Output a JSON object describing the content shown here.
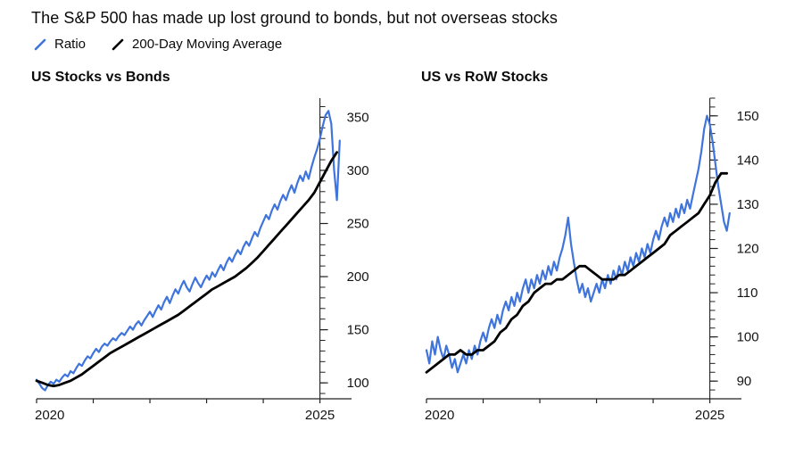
{
  "page": {
    "title": "The S&P 500 has made up lost ground to bonds, but not overseas stocks"
  },
  "legend": [
    {
      "label": "Ratio",
      "color": "#3e74dc",
      "icon": "diagonal-line"
    },
    {
      "label": "200-Day Moving Average",
      "color": "#000000",
      "icon": "diagonal-line"
    }
  ],
  "colors": {
    "accent_blue": "#3e74dc",
    "line_black": "#000000",
    "axis": "#222222"
  },
  "chart_data": [
    {
      "type": "line",
      "title": "US Stocks vs Bonds",
      "xlabel": "",
      "ylabel": "",
      "x_range": [
        2020,
        2025.4
      ],
      "x_ticks": [
        2020,
        2021,
        2022,
        2023,
        2024,
        2025
      ],
      "x_tick_labels": [
        "2020",
        "",
        "",
        "",
        "",
        "2025"
      ],
      "axis_x": 2025,
      "ylim": [
        85,
        368
      ],
      "y_ticks": [
        100,
        150,
        200,
        250,
        300,
        350
      ],
      "y_minor_step": 10,
      "legend_position": "top-left",
      "grid": false,
      "series": [
        {
          "name": "Ratio",
          "color": "#3e74dc",
          "width": 2.2,
          "x_start": 2020,
          "x_step": 0.05,
          "y": [
            103,
            99,
            95,
            93,
            98,
            101,
            99,
            103,
            101,
            105,
            108,
            106,
            111,
            109,
            114,
            118,
            116,
            121,
            125,
            123,
            128,
            132,
            129,
            134,
            137,
            135,
            139,
            142,
            140,
            144,
            147,
            145,
            149,
            153,
            150,
            155,
            158,
            154,
            159,
            163,
            167,
            162,
            168,
            173,
            169,
            176,
            181,
            175,
            182,
            188,
            184,
            191,
            196,
            190,
            186,
            193,
            199,
            194,
            190,
            196,
            201,
            197,
            204,
            200,
            206,
            211,
            206,
            213,
            218,
            214,
            220,
            225,
            221,
            228,
            233,
            229,
            236,
            242,
            238,
            246,
            252,
            258,
            254,
            262,
            268,
            263,
            271,
            277,
            272,
            280,
            286,
            279,
            288,
            295,
            290,
            299,
            292,
            303,
            312,
            320,
            330,
            342,
            352,
            356,
            344,
            300,
            272,
            328
          ]
        },
        {
          "name": "200-Day Moving Average",
          "color": "#000000",
          "width": 2.8,
          "x_start": 2020,
          "x_step": 0.1,
          "y": [
            102,
            100,
            98,
            97,
            98,
            100,
            102,
            105,
            108,
            112,
            116,
            120,
            124,
            128,
            131,
            134,
            137,
            140,
            143,
            146,
            149,
            152,
            155,
            158,
            161,
            164,
            168,
            172,
            176,
            180,
            184,
            188,
            191,
            194,
            197,
            200,
            204,
            208,
            213,
            218,
            224,
            230,
            236,
            242,
            248,
            254,
            260,
            266,
            272,
            279,
            289,
            299,
            309,
            317
          ]
        }
      ]
    },
    {
      "type": "line",
      "title": "US vs RoW Stocks",
      "xlabel": "",
      "ylabel": "",
      "x_range": [
        2020,
        2025.4
      ],
      "x_ticks": [
        2020,
        2021,
        2022,
        2023,
        2024,
        2025
      ],
      "x_tick_labels": [
        "2020",
        "",
        "",
        "",
        "",
        "2025"
      ],
      "axis_x": 2025,
      "ylim": [
        86,
        154
      ],
      "y_ticks": [
        90,
        100,
        110,
        120,
        130,
        140,
        150
      ],
      "y_minor_step": 2,
      "legend_position": "top-left",
      "grid": false,
      "series": [
        {
          "name": "Ratio",
          "color": "#3e74dc",
          "width": 2.2,
          "x_start": 2020,
          "x_step": 0.05,
          "y": [
            97,
            94,
            99,
            96,
            100,
            97,
            95,
            98,
            96,
            93,
            95,
            92,
            94,
            96,
            94,
            97,
            95,
            98,
            96,
            99,
            101,
            99,
            102,
            104,
            102,
            105,
            103,
            106,
            108,
            106,
            109,
            107,
            110,
            108,
            111,
            113,
            110,
            113,
            111,
            114,
            112,
            115,
            113,
            116,
            114,
            117,
            115,
            118,
            120,
            123,
            127,
            121,
            117,
            113,
            110,
            112,
            109,
            111,
            108,
            110,
            112,
            110,
            113,
            111,
            114,
            112,
            115,
            113,
            116,
            114,
            117,
            115,
            118,
            116,
            119,
            117,
            120,
            118,
            121,
            119,
            122,
            124,
            122,
            125,
            127,
            125,
            128,
            126,
            129,
            127,
            130,
            128,
            131,
            129,
            132,
            135,
            138,
            142,
            147,
            150,
            148,
            144,
            139,
            134,
            130,
            126,
            124,
            128
          ]
        },
        {
          "name": "200-Day Moving Average",
          "color": "#000000",
          "width": 2.8,
          "x_start": 2020,
          "x_step": 0.1,
          "y": [
            92,
            93,
            94,
            95,
            96,
            96,
            97,
            96,
            96,
            97,
            97,
            98,
            99,
            101,
            102,
            104,
            105,
            107,
            108,
            110,
            111,
            112,
            112,
            113,
            113,
            114,
            115,
            116,
            116,
            115,
            114,
            113,
            113,
            113,
            114,
            114,
            115,
            116,
            117,
            118,
            119,
            120,
            121,
            123,
            124,
            125,
            126,
            127,
            128,
            130,
            132,
            135,
            137,
            137
          ]
        }
      ]
    }
  ]
}
